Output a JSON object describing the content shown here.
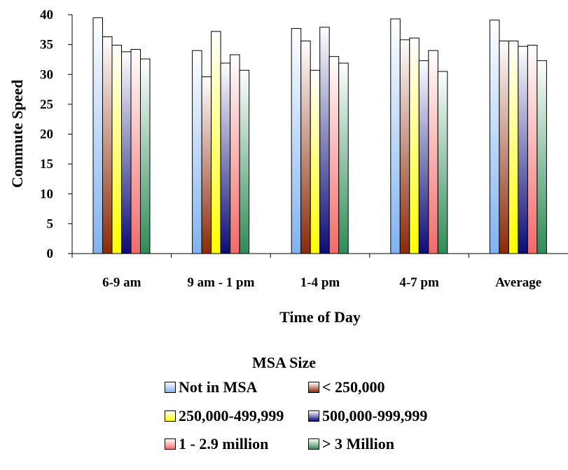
{
  "chart_data": {
    "type": "bar",
    "xlabel": "Time of Day",
    "ylabel": "Commute Speed",
    "ylim": [
      0,
      40
    ],
    "yticks": [
      0,
      5,
      10,
      15,
      20,
      25,
      30,
      35,
      40
    ],
    "categories": [
      "6-9 am",
      "9 am - 1 pm",
      "1-4 pm",
      "4-7 pm",
      "Average"
    ],
    "series": [
      {
        "name": "Not in MSA",
        "values": [
          39.5,
          34.0,
          37.7,
          39.3,
          39.1
        ]
      },
      {
        "name": "< 250,000",
        "values": [
          36.3,
          29.6,
          35.6,
          35.8,
          35.6
        ]
      },
      {
        "name": "250,000-499,999",
        "values": [
          34.9,
          37.2,
          30.7,
          36.1,
          35.6
        ]
      },
      {
        "name": "500,000-999,999",
        "values": [
          33.8,
          31.9,
          37.9,
          32.3,
          34.7
        ]
      },
      {
        "name": "1 - 2.9 million",
        "values": [
          34.2,
          33.3,
          33.0,
          34.0,
          34.9
        ]
      },
      {
        "name": "> 3 Million",
        "values": [
          32.6,
          30.7,
          31.9,
          30.5,
          32.3
        ]
      }
    ],
    "legend": {
      "title": "MSA Size",
      "position": "bottom"
    },
    "grid": false
  },
  "series_colors": [
    {
      "top": "#ffffff",
      "bottom": "#7fb2f0"
    },
    {
      "top": "#ffffff",
      "bottom": "#8b2a08"
    },
    {
      "top": "#ffffff",
      "bottom": "#ffff00"
    },
    {
      "top": "#ffffff",
      "bottom": "#0c0c78"
    },
    {
      "top": "#ffffff",
      "bottom": "#f26a6a"
    },
    {
      "top": "#ffffff",
      "bottom": "#2e8b57"
    }
  ]
}
